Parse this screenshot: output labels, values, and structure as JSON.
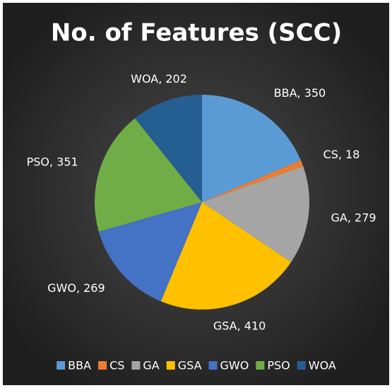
{
  "chart_data": {
    "type": "pie",
    "title": "No. of Features (SCC)",
    "categories": [
      "BBA",
      "CS",
      "GA",
      "GSA",
      "GWO",
      "PSO",
      "WOA"
    ],
    "values": [
      350,
      18,
      279,
      410,
      269,
      351,
      202
    ],
    "value_labels": [
      "BBA, 350",
      "CS, 18",
      "GA, 279",
      "GSA, 410",
      "GWO, 269",
      "PSO, 351",
      "WOA, 202"
    ],
    "colors": [
      "#5b9bd5",
      "#ed7d31",
      "#a5a5a5",
      "#ffc000",
      "#4472c4",
      "#70ad47",
      "#255e91"
    ],
    "legend": "bottom"
  }
}
